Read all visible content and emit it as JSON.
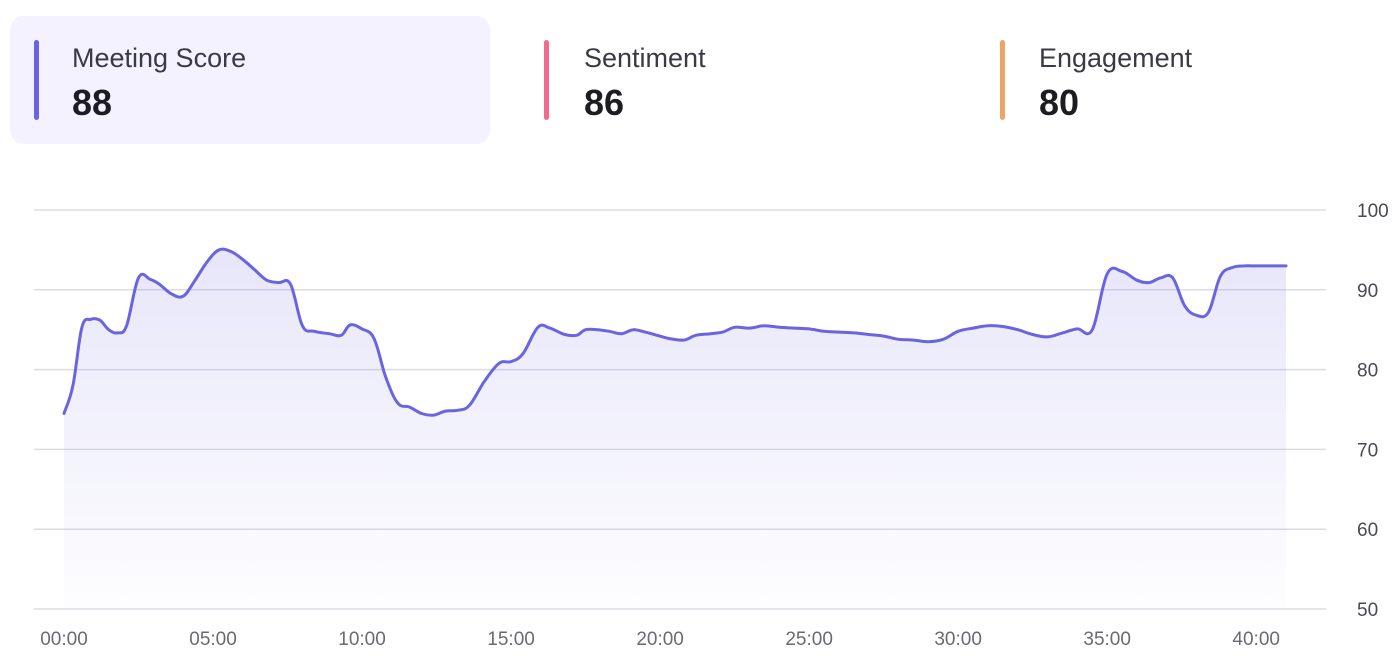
{
  "tabs": [
    {
      "label": "Meeting Score",
      "value": "88",
      "color": "#6b64e0",
      "active": true
    },
    {
      "label": "Sentiment",
      "value": "86",
      "color": "#f16b8f",
      "active": false
    },
    {
      "label": "Engagement",
      "value": "80",
      "color": "#eea468",
      "active": false
    }
  ],
  "chart_data": {
    "type": "area",
    "title": "",
    "xlabel": "",
    "ylabel": "",
    "xlim": [
      0,
      41
    ],
    "ylim": [
      50,
      100
    ],
    "yticks": [
      "100",
      "90",
      "80",
      "70",
      "60",
      "50"
    ],
    "xticks": [
      "00:00",
      "05:00",
      "10:00",
      "15:00",
      "20:00",
      "25:00",
      "30:00",
      "35:00",
      "40:00"
    ],
    "grid": true,
    "y_axis_side": "right",
    "line_color": "#6b64e0",
    "series": [
      {
        "x": [
          0,
          0.3,
          0.6,
          0.9,
          1.2,
          1.5,
          1.8,
          2.1,
          2.5,
          2.9,
          3.2,
          3.6,
          4.0,
          4.4,
          4.8,
          5.2,
          5.6,
          6.0,
          6.4,
          6.8,
          7.2,
          7.6,
          8.0,
          8.4,
          8.9,
          9.3,
          9.6,
          10.0,
          10.4,
          10.8,
          11.2,
          11.6,
          12.0,
          12.4,
          12.8,
          13.2,
          13.6,
          14.1,
          14.6,
          15.0,
          15.4,
          15.9,
          16.3,
          16.8,
          17.2,
          17.5,
          17.9,
          18.3,
          18.7,
          19.1,
          19.5,
          19.9,
          20.3,
          20.8,
          21.2,
          21.7,
          22.1,
          22.5,
          23.0,
          23.5,
          24.0,
          24.5,
          25.0,
          25.5,
          26.0,
          26.5,
          27.0,
          27.5,
          28.0,
          28.5,
          29.0,
          29.5,
          30.0,
          30.5,
          31.0,
          31.5,
          32.0,
          32.5,
          33.0,
          33.5,
          34.0,
          34.5,
          35.0,
          35.5,
          36.0,
          36.4,
          36.8,
          37.2,
          37.6,
          38.0,
          38.4,
          38.8,
          39.2,
          39.6,
          40.0,
          40.4,
          40.8,
          41.0
        ],
        "values": [
          74.5,
          78,
          85.3,
          86.3,
          86.2,
          85,
          84.6,
          85.5,
          91.5,
          91.3,
          90.7,
          89.5,
          89.2,
          91.2,
          93.5,
          95,
          94.8,
          93.8,
          92.5,
          91.2,
          90.9,
          90.7,
          85.5,
          84.8,
          84.5,
          84.3,
          85.6,
          85.1,
          83.9,
          79,
          75.8,
          75.3,
          74.5,
          74.3,
          74.8,
          74.9,
          75.5,
          78.5,
          80.8,
          81,
          82,
          85.3,
          85.2,
          84.4,
          84.3,
          85,
          85,
          84.8,
          84.5,
          85,
          84.7,
          84.3,
          83.9,
          83.7,
          84.3,
          84.5,
          84.7,
          85.3,
          85.2,
          85.5,
          85.3,
          85.2,
          85.1,
          84.8,
          84.7,
          84.6,
          84.4,
          84.2,
          83.8,
          83.7,
          83.5,
          83.8,
          84.8,
          85.2,
          85.5,
          85.4,
          85.0,
          84.4,
          84.1,
          84.6,
          85.1,
          85.0,
          92.0,
          92.3,
          91.2,
          90.9,
          91.5,
          91.5,
          88.0,
          86.8,
          87.2,
          91.7,
          92.8,
          93.0,
          93.0,
          93.0,
          93.0,
          93.0
        ]
      }
    ]
  }
}
